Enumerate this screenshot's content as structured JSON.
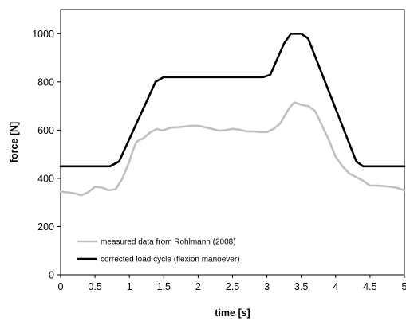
{
  "chart_data": {
    "type": "line",
    "xlabel": "time [s]",
    "ylabel": "force [N]",
    "xlim": [
      0,
      5
    ],
    "ylim": [
      0,
      1100
    ],
    "x_ticks": [
      0,
      0.5,
      1,
      1.5,
      2,
      2.5,
      3,
      3.5,
      4,
      4.5,
      5
    ],
    "y_ticks": [
      0,
      200,
      400,
      600,
      800,
      1000
    ],
    "grid": false,
    "legend_position": "bottom-left",
    "series": [
      {
        "name": "measured data from Rohlmann (2008)",
        "color": "#c0c0c0",
        "x": [
          0,
          0.1,
          0.2,
          0.3,
          0.4,
          0.5,
          0.6,
          0.7,
          0.8,
          0.9,
          1.0,
          1.05,
          1.1,
          1.15,
          1.2,
          1.3,
          1.4,
          1.45,
          1.5,
          1.6,
          1.7,
          1.8,
          1.9,
          2.0,
          2.1,
          2.2,
          2.3,
          2.4,
          2.5,
          2.6,
          2.7,
          2.8,
          2.9,
          3.0,
          3.1,
          3.2,
          3.3,
          3.35,
          3.4,
          3.5,
          3.6,
          3.7,
          3.8,
          3.9,
          4.0,
          4.1,
          4.2,
          4.3,
          4.4,
          4.5,
          4.6,
          4.7,
          4.8,
          4.9,
          5.0
        ],
        "values": [
          345,
          342,
          338,
          330,
          342,
          365,
          362,
          350,
          355,
          400,
          470,
          515,
          550,
          560,
          565,
          590,
          605,
          600,
          600,
          610,
          612,
          615,
          618,
          618,
          612,
          605,
          598,
          600,
          605,
          602,
          595,
          595,
          592,
          592,
          605,
          630,
          680,
          700,
          715,
          705,
          700,
          680,
          620,
          560,
          490,
          450,
          420,
          405,
          390,
          370,
          370,
          368,
          365,
          360,
          350
        ]
      },
      {
        "name": "corrected load cycle (flexion manoever)",
        "color": "#000000",
        "x": [
          0,
          0.72,
          0.85,
          1.38,
          1.5,
          2.95,
          3.05,
          3.25,
          3.35,
          3.5,
          3.6,
          4.3,
          4.4,
          5.0
        ],
        "values": [
          450,
          450,
          470,
          800,
          820,
          820,
          830,
          960,
          1000,
          1000,
          980,
          470,
          450,
          450
        ]
      }
    ]
  }
}
